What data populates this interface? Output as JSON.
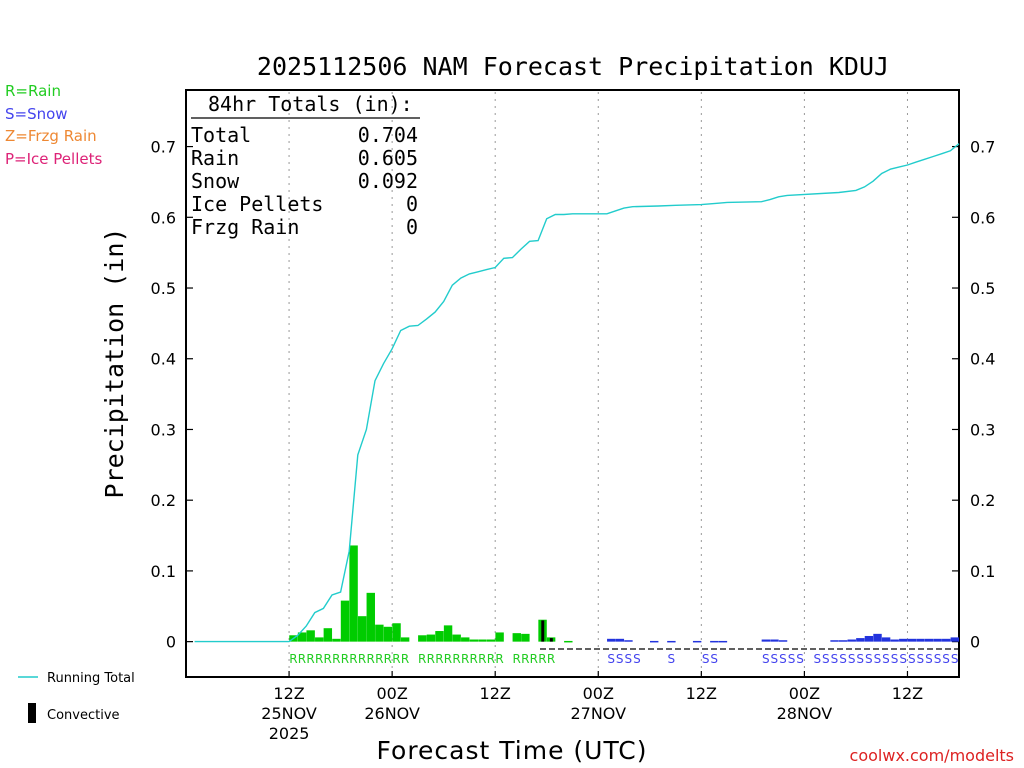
{
  "chart_data": {
    "type": "bar",
    "title": "2025112506 NAM Forecast Precipitation KDUJ",
    "xlabel": "Forecast Time (UTC)",
    "ylabel": "Precipitation (in)",
    "ylim": [
      -0.05,
      0.78
    ],
    "yticks": [
      "0",
      "0.1",
      "0.2",
      "0.3",
      "0.4",
      "0.5",
      "0.6",
      "0.7"
    ],
    "xlim_hours": [
      -6,
      84
    ],
    "x_ticks": [
      {
        "hour": 6,
        "time": "12Z",
        "date": "25NOV",
        "year": "2025"
      },
      {
        "hour": 18,
        "time": "00Z",
        "date": "26NOV",
        "year": ""
      },
      {
        "hour": 30,
        "time": "12Z",
        "date": "",
        "year": ""
      },
      {
        "hour": 42,
        "time": "00Z",
        "date": "27NOV",
        "year": ""
      },
      {
        "hour": 54,
        "time": "12Z",
        "date": "",
        "year": ""
      },
      {
        "hour": 66,
        "time": "00Z",
        "date": "28NOV",
        "year": ""
      },
      {
        "hour": 78,
        "time": "12Z",
        "date": "",
        "year": ""
      }
    ],
    "legend": [
      {
        "label": "R=Rain",
        "color": "#22cc22"
      },
      {
        "label": "S=Snow",
        "color": "#4444ee"
      },
      {
        "label": "Z=Frzg Rain",
        "color": "#ee8833"
      },
      {
        "label": "P=Ice Pellets",
        "color": "#dd2277"
      }
    ],
    "series_legend": {
      "running_total": "Running Total",
      "convective": "Convective"
    },
    "totals": {
      "header": "84hr Totals (in):",
      "rows": [
        {
          "label": "Total",
          "value": "0.704"
        },
        {
          "label": "Rain",
          "value": "0.605"
        },
        {
          "label": "Snow",
          "value": "0.092"
        },
        {
          "label": "Ice Pellets",
          "value": "0"
        },
        {
          "label": "Frzg Rain",
          "value": "0"
        }
      ]
    },
    "colors": {
      "rain": "#00cc00",
      "snow": "#2233dd",
      "convective": "#000000",
      "running_total": "#22cccc"
    },
    "bars": [
      {
        "h": 7,
        "v": 0.009,
        "type": "rain"
      },
      {
        "h": 8,
        "v": 0.013,
        "type": "rain"
      },
      {
        "h": 9,
        "v": 0.016,
        "type": "rain"
      },
      {
        "h": 10,
        "v": 0.006,
        "type": "rain"
      },
      {
        "h": 11,
        "v": 0.019,
        "type": "rain"
      },
      {
        "h": 12,
        "v": 0.004,
        "type": "rain"
      },
      {
        "h": 13,
        "v": 0.058,
        "type": "rain"
      },
      {
        "h": 14,
        "v": 0.136,
        "type": "rain"
      },
      {
        "h": 15,
        "v": 0.036,
        "type": "rain"
      },
      {
        "h": 16,
        "v": 0.069,
        "type": "rain"
      },
      {
        "h": 17,
        "v": 0.024,
        "type": "rain"
      },
      {
        "h": 18,
        "v": 0.021,
        "type": "rain"
      },
      {
        "h": 19,
        "v": 0.026,
        "type": "rain"
      },
      {
        "h": 20,
        "v": 0.006,
        "type": "rain"
      },
      {
        "h": 22,
        "v": 0.009,
        "type": "rain"
      },
      {
        "h": 23,
        "v": 0.01,
        "type": "rain"
      },
      {
        "h": 24,
        "v": 0.015,
        "type": "rain"
      },
      {
        "h": 25,
        "v": 0.023,
        "type": "rain"
      },
      {
        "h": 26,
        "v": 0.01,
        "type": "rain"
      },
      {
        "h": 27,
        "v": 0.006,
        "type": "rain"
      },
      {
        "h": 28,
        "v": 0.003,
        "type": "rain"
      },
      {
        "h": 29,
        "v": 0.003,
        "type": "rain"
      },
      {
        "h": 30,
        "v": 0.003,
        "type": "rain"
      },
      {
        "h": 31,
        "v": 0.013,
        "type": "rain"
      },
      {
        "h": 33,
        "v": 0.012,
        "type": "rain"
      },
      {
        "h": 34,
        "v": 0.011,
        "type": "rain"
      },
      {
        "h": 36,
        "v": 0.031,
        "type": "rain",
        "conv": 0.03
      },
      {
        "h": 37,
        "v": 0.006,
        "type": "rain",
        "conv": 0.005
      },
      {
        "h": 39,
        "v": 0.001,
        "type": "rain"
      },
      {
        "h": 44,
        "v": 0.004,
        "type": "snow"
      },
      {
        "h": 45,
        "v": 0.004,
        "type": "snow"
      },
      {
        "h": 46,
        "v": 0.002,
        "type": "snow"
      },
      {
        "h": 49,
        "v": 0.001,
        "type": "snow"
      },
      {
        "h": 51,
        "v": 0.001,
        "type": "snow"
      },
      {
        "h": 54,
        "v": 0.001,
        "type": "snow"
      },
      {
        "h": 56,
        "v": 0.001,
        "type": "snow"
      },
      {
        "h": 57,
        "v": 0.001,
        "type": "snow"
      },
      {
        "h": 62,
        "v": 0.003,
        "type": "snow"
      },
      {
        "h": 63,
        "v": 0.003,
        "type": "snow"
      },
      {
        "h": 64,
        "v": 0.002,
        "type": "snow"
      },
      {
        "h": 70,
        "v": 0.002,
        "type": "snow"
      },
      {
        "h": 71,
        "v": 0.002,
        "type": "snow"
      },
      {
        "h": 72,
        "v": 0.003,
        "type": "snow"
      },
      {
        "h": 73,
        "v": 0.005,
        "type": "snow"
      },
      {
        "h": 74,
        "v": 0.008,
        "type": "snow"
      },
      {
        "h": 75,
        "v": 0.011,
        "type": "snow"
      },
      {
        "h": 76,
        "v": 0.006,
        "type": "snow"
      },
      {
        "h": 77,
        "v": 0.003,
        "type": "snow"
      },
      {
        "h": 78,
        "v": 0.004,
        "type": "snow"
      },
      {
        "h": 79,
        "v": 0.004,
        "type": "snow"
      },
      {
        "h": 80,
        "v": 0.004,
        "type": "snow"
      },
      {
        "h": 81,
        "v": 0.004,
        "type": "snow"
      },
      {
        "h": 82,
        "v": 0.004,
        "type": "snow"
      },
      {
        "h": 83,
        "v": 0.004,
        "type": "snow"
      },
      {
        "h": 84,
        "v": 0.006,
        "type": "snow"
      }
    ],
    "running_total": [
      [
        -5,
        0
      ],
      [
        6,
        0
      ],
      [
        7,
        0.009
      ],
      [
        8,
        0.022
      ],
      [
        9,
        0.041
      ],
      [
        10,
        0.047
      ],
      [
        11,
        0.066
      ],
      [
        12,
        0.07
      ],
      [
        13,
        0.128
      ],
      [
        14,
        0.264
      ],
      [
        15,
        0.3
      ],
      [
        16,
        0.369
      ],
      [
        17,
        0.393
      ],
      [
        18,
        0.414
      ],
      [
        19,
        0.44
      ],
      [
        20,
        0.446
      ],
      [
        21,
        0.447
      ],
      [
        22,
        0.456
      ],
      [
        23,
        0.466
      ],
      [
        24,
        0.481
      ],
      [
        25,
        0.504
      ],
      [
        26,
        0.514
      ],
      [
        27,
        0.52
      ],
      [
        28,
        0.523
      ],
      [
        29,
        0.526
      ],
      [
        30,
        0.529
      ],
      [
        31,
        0.542
      ],
      [
        32,
        0.543
      ],
      [
        33,
        0.555
      ],
      [
        34,
        0.566
      ],
      [
        35,
        0.567
      ],
      [
        36,
        0.598
      ],
      [
        37,
        0.604
      ],
      [
        38,
        0.604
      ],
      [
        39,
        0.605
      ],
      [
        43,
        0.605
      ],
      [
        44,
        0.609
      ],
      [
        45,
        0.613
      ],
      [
        46,
        0.615
      ],
      [
        49,
        0.616
      ],
      [
        51,
        0.617
      ],
      [
        54,
        0.618
      ],
      [
        56,
        0.62
      ],
      [
        57,
        0.621
      ],
      [
        61,
        0.622
      ],
      [
        62,
        0.625
      ],
      [
        63,
        0.629
      ],
      [
        64,
        0.631
      ],
      [
        70,
        0.635
      ],
      [
        72,
        0.638
      ],
      [
        73,
        0.643
      ],
      [
        74,
        0.651
      ],
      [
        75,
        0.662
      ],
      [
        76,
        0.668
      ],
      [
        77,
        0.671
      ],
      [
        78,
        0.674
      ],
      [
        79,
        0.678
      ],
      [
        80,
        0.682
      ],
      [
        81,
        0.686
      ],
      [
        82,
        0.69
      ],
      [
        83,
        0.694
      ],
      [
        84,
        0.704
      ]
    ],
    "ptype_labels": [
      {
        "hours": [
          7,
          20
        ],
        "type": "rain"
      },
      {
        "hours": [
          22,
          31
        ],
        "type": "rain"
      },
      {
        "hours": [
          33,
          37
        ],
        "type": "rain"
      },
      {
        "hours": [
          44,
          47
        ],
        "type": "snow"
      },
      {
        "hours": [
          51,
          51
        ],
        "type": "snow"
      },
      {
        "hours": [
          55,
          56
        ],
        "type": "snow"
      },
      {
        "hours": [
          62,
          66
        ],
        "type": "snow"
      },
      {
        "hours": [
          68,
          84
        ],
        "type": "snow"
      }
    ]
  },
  "credit": "coolwx.com/modelts"
}
